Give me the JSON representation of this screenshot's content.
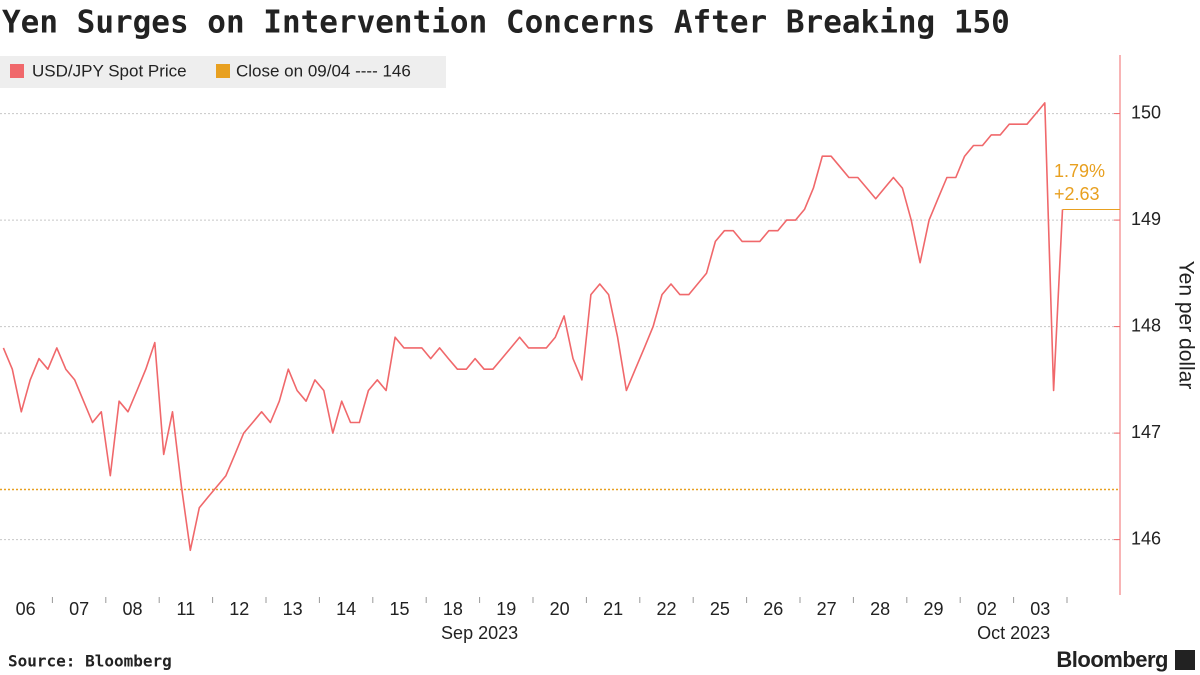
{
  "chart_data": {
    "type": "line",
    "title": "Yen Surges on Intervention Concerns After Breaking 150",
    "y_label": "Yen per dollar",
    "source": "Source: Bloomberg",
    "brand": "Bloomberg",
    "categories": [
      "06",
      "07",
      "08",
      "11",
      "12",
      "13",
      "14",
      "15",
      "18",
      "19",
      "20",
      "21",
      "22",
      "25",
      "26",
      "27",
      "28",
      "29",
      "02",
      "03"
    ],
    "x_groups": [
      {
        "label": "Sep 2023",
        "start": 0,
        "end": 17
      },
      {
        "label": "Oct 2023",
        "start": 18,
        "end": 19
      }
    ],
    "series": [
      {
        "name": "USD/JPY Spot Price",
        "color": "#f0686b",
        "values": [
          [
            147.8,
            147.6,
            147.2,
            147.5,
            147.7,
            147.6
          ],
          [
            147.8,
            147.6,
            147.5,
            147.3,
            147.1,
            147.2
          ],
          [
            146.6,
            147.3,
            147.2,
            147.4,
            147.6,
            147.85
          ],
          [
            146.8,
            147.2,
            146.5,
            145.9,
            146.3,
            146.4
          ],
          [
            146.5,
            146.6,
            146.8,
            147.0,
            147.1,
            147.2
          ],
          [
            147.1,
            147.3,
            147.6,
            147.4,
            147.3,
            147.5
          ],
          [
            147.4,
            147.0,
            147.3,
            147.1,
            147.1,
            147.4
          ],
          [
            147.5,
            147.4,
            147.9,
            147.8,
            147.8,
            147.8
          ],
          [
            147.7,
            147.8,
            147.7,
            147.6,
            147.6,
            147.7
          ],
          [
            147.6,
            147.6,
            147.7,
            147.8,
            147.9,
            147.8
          ],
          [
            147.8,
            147.8,
            147.9,
            148.1,
            147.7,
            147.5
          ],
          [
            148.3,
            148.4,
            148.3,
            147.9,
            147.4,
            147.6
          ],
          [
            147.8,
            148.0,
            148.3,
            148.4,
            148.3,
            148.3
          ],
          [
            148.4,
            148.5,
            148.8,
            148.9,
            148.9,
            148.8
          ],
          [
            148.8,
            148.8,
            148.9,
            148.9,
            149.0,
            149.0
          ],
          [
            149.1,
            149.3,
            149.6,
            149.6,
            149.5,
            149.4
          ],
          [
            149.4,
            149.3,
            149.2,
            149.3,
            149.4,
            149.3
          ],
          [
            149.0,
            148.6,
            149.0,
            149.2,
            149.4,
            149.4
          ],
          [
            149.6,
            149.7,
            149.7,
            149.8,
            149.8,
            149.9
          ],
          [
            149.9,
            149.9,
            150.0,
            150.1,
            147.4,
            149.1
          ]
        ]
      }
    ],
    "reference": {
      "name": "Close on 09/04 ---- 146",
      "value": 146.47,
      "color": "#e8a020"
    },
    "annotations": [
      "1.79%",
      "+2.63"
    ],
    "annotation_color": "#e8a020",
    "ylim": [
      145.48,
      150.55
    ],
    "yticks": [
      146,
      147,
      148,
      149,
      150
    ],
    "grid": true
  }
}
